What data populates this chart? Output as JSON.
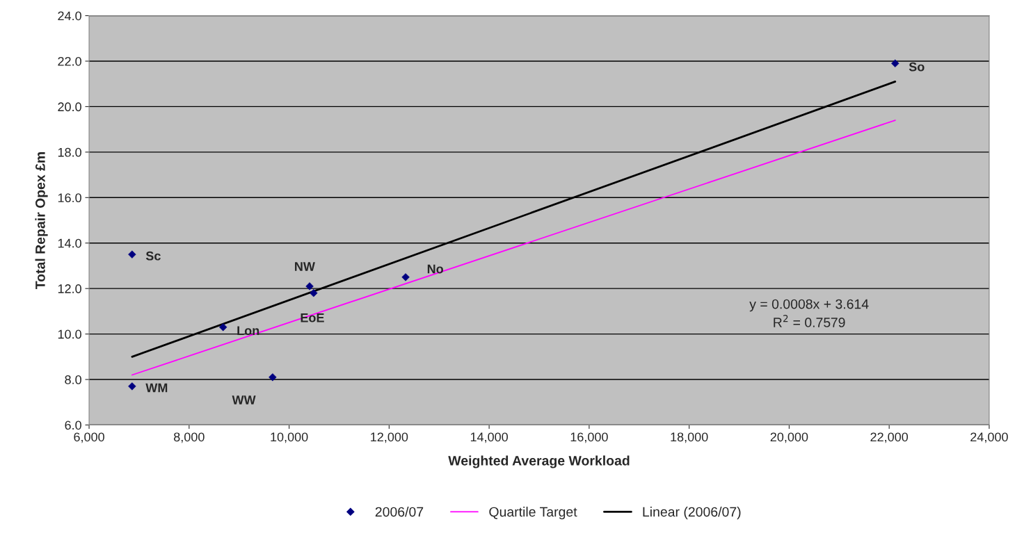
{
  "chart_data": {
    "type": "scatter",
    "xlabel": "Weighted Average Workload",
    "ylabel": "Total Repair Opex £m",
    "xlim": [
      6000,
      24000
    ],
    "xticks": [
      {
        "value": 6000,
        "label": "6,000"
      },
      {
        "value": 8000,
        "label": "8,000"
      },
      {
        "value": 10000,
        "label": "10,000"
      },
      {
        "value": 12000,
        "label": "12,000"
      },
      {
        "value": 14000,
        "label": "14,000"
      },
      {
        "value": 16000,
        "label": "16,000"
      },
      {
        "value": 18000,
        "label": "18,000"
      },
      {
        "value": 20000,
        "label": "20,000"
      },
      {
        "value": 22000,
        "label": "22,000"
      },
      {
        "value": 24000,
        "label": "24,000"
      }
    ],
    "ylim": [
      6,
      24
    ],
    "yticks": [
      {
        "value": 6,
        "label": "6.0"
      },
      {
        "value": 8,
        "label": "8.0"
      },
      {
        "value": 10,
        "label": "10.0"
      },
      {
        "value": 12,
        "label": "12.0"
      },
      {
        "value": 14,
        "label": "14.0"
      },
      {
        "value": 16,
        "label": "16.0"
      },
      {
        "value": 18,
        "label": "18.0"
      },
      {
        "value": 20,
        "label": "20.0"
      },
      {
        "value": 22,
        "label": "22.0"
      },
      {
        "value": 24,
        "label": "24.0"
      }
    ],
    "grid": "y",
    "legend": "bottom",
    "series": [
      {
        "name": "2006/07",
        "color": "#000080",
        "marker": "diamond",
        "x": [
          6860,
          6860,
          8680,
          9670,
          10410,
          10490,
          12330,
          22120
        ],
        "values": [
          13.5,
          7.7,
          10.3,
          8.1,
          12.1,
          11.8,
          12.5,
          21.9
        ]
      },
      {
        "name": "Quartile Target",
        "type": "line",
        "color": "#ff00ff",
        "marker": "none",
        "line_style": "solid",
        "x": [
          6860,
          22120
        ],
        "values": [
          8.2,
          19.4
        ]
      },
      {
        "name": "Linear (2006/07)",
        "type": "line",
        "color": "#000000",
        "marker": "none",
        "line_style": "solid",
        "x": [
          6860,
          22120
        ],
        "values": [
          9.0,
          21.1
        ]
      }
    ],
    "annotations": [
      {
        "text": "Sc",
        "x": 6860,
        "y": 13.5
      },
      {
        "text": "WM",
        "x": 6860,
        "y": 7.7
      },
      {
        "text": "Lon",
        "x": 8680,
        "y": 10.3
      },
      {
        "text": "WW",
        "x": 9670,
        "y": 8.1
      },
      {
        "text": "NW",
        "x": 10410,
        "y": 12.1
      },
      {
        "text": "EoE",
        "x": 10490,
        "y": 11.8
      },
      {
        "text": "No",
        "x": 12330,
        "y": 12.5
      },
      {
        "text": "So",
        "x": 22120,
        "y": 21.9
      },
      "y = 0.0008x + 3.614\nR$^{2}$ = 0.7579"
    ]
  }
}
